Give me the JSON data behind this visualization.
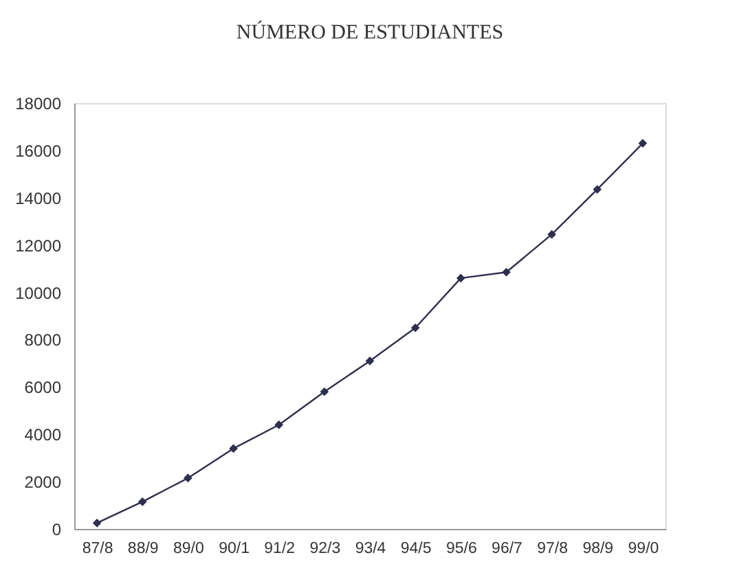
{
  "chart_data": {
    "type": "line",
    "title": "NÚMERO DE ESTUDIANTES",
    "categories": [
      "87/8",
      "88/9",
      "89/0",
      "90/1",
      "91/2",
      "92/3",
      "93/4",
      "94/5",
      "95/6",
      "96/7",
      "97/8",
      "98/9",
      "99/0"
    ],
    "series": [
      {
        "color": "#2e2e4e",
        "values": [
          250,
          1150,
          2150,
          3400,
          4400,
          5800,
          7100,
          8500,
          10600,
          10850,
          12450,
          14350,
          16300
        ]
      }
    ],
    "ylim": [
      0,
      18000
    ],
    "yticks": [
      0,
      2000,
      4000,
      6000,
      8000,
      10000,
      12000,
      14000,
      16000,
      18000
    ],
    "grid": false,
    "marker": "diamond",
    "line_style": "solid"
  }
}
